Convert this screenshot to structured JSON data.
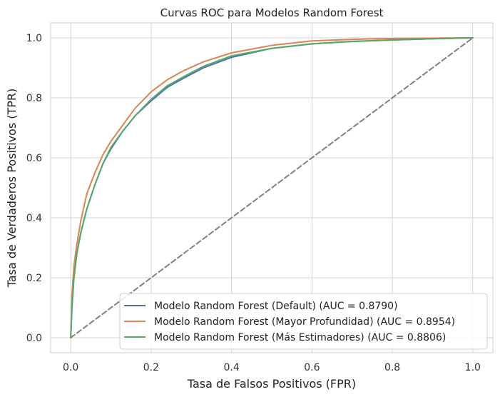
{
  "chart_data": {
    "type": "line",
    "title": "Curvas ROC para Modelos Random Forest",
    "xlabel": "Tasa de Falsos Positivos (FPR)",
    "ylabel": "Tasa de Verdaderos Positivos (TPR)",
    "xlim": [
      -0.05,
      1.05
    ],
    "ylim": [
      -0.05,
      1.05
    ],
    "xticks": [
      0.0,
      0.2,
      0.4,
      0.6,
      0.8,
      1.0
    ],
    "yticks": [
      0.0,
      0.2,
      0.4,
      0.6,
      0.8,
      1.0
    ],
    "xtick_labels": [
      "0.0",
      "0.2",
      "0.4",
      "0.6",
      "0.8",
      "1.0"
    ],
    "ytick_labels": [
      "0.0",
      "0.2",
      "0.4",
      "0.6",
      "0.8",
      "1.0"
    ],
    "grid": true,
    "legend_position": "lower-right",
    "series": [
      {
        "name": "Modelo Random Forest (Default) (AUC = 0.8790)",
        "color": "#4c72b0",
        "x": [
          0.0,
          0.003,
          0.008,
          0.015,
          0.025,
          0.04,
          0.06,
          0.08,
          0.1,
          0.13,
          0.16,
          0.2,
          0.24,
          0.28,
          0.33,
          0.4,
          0.5,
          0.6,
          0.7,
          0.8,
          0.9,
          1.0
        ],
        "y": [
          0.0,
          0.1,
          0.2,
          0.28,
          0.35,
          0.43,
          0.51,
          0.58,
          0.63,
          0.69,
          0.74,
          0.79,
          0.835,
          0.865,
          0.9,
          0.935,
          0.965,
          0.98,
          0.988,
          0.993,
          0.997,
          1.0
        ]
      },
      {
        "name": "Modelo Random Forest (Mayor Profundidad) (AUC = 0.8954)",
        "color": "#dd8452",
        "x": [
          0.0,
          0.003,
          0.008,
          0.015,
          0.025,
          0.04,
          0.06,
          0.08,
          0.1,
          0.13,
          0.16,
          0.2,
          0.24,
          0.28,
          0.33,
          0.4,
          0.5,
          0.6,
          0.7,
          0.8,
          0.9,
          1.0
        ],
        "y": [
          0.0,
          0.14,
          0.24,
          0.31,
          0.39,
          0.48,
          0.55,
          0.61,
          0.655,
          0.71,
          0.765,
          0.82,
          0.86,
          0.89,
          0.92,
          0.95,
          0.975,
          0.99,
          0.995,
          0.998,
          0.999,
          1.0
        ]
      },
      {
        "name": "Modelo Random Forest (Más Estimadores) (AUC = 0.8806)",
        "color": "#55a868",
        "x": [
          0.0,
          0.003,
          0.008,
          0.015,
          0.025,
          0.04,
          0.06,
          0.08,
          0.1,
          0.13,
          0.16,
          0.2,
          0.24,
          0.28,
          0.33,
          0.4,
          0.5,
          0.6,
          0.7,
          0.8,
          0.9,
          1.0
        ],
        "y": [
          0.0,
          0.11,
          0.2,
          0.28,
          0.35,
          0.43,
          0.51,
          0.58,
          0.635,
          0.69,
          0.74,
          0.795,
          0.84,
          0.87,
          0.905,
          0.94,
          0.965,
          0.98,
          0.988,
          0.993,
          0.997,
          1.0
        ]
      },
      {
        "color": "#808080",
        "dashed": true,
        "x": [
          0.0,
          1.0
        ],
        "y": [
          0.0,
          1.0
        ]
      }
    ]
  }
}
